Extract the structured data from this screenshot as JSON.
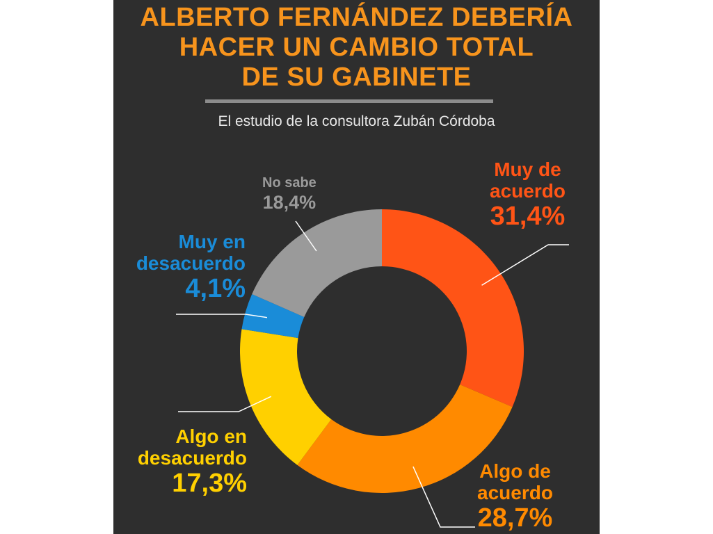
{
  "header": {
    "title_lines": [
      "ALBERTO FERNÁNDEZ DEBERÍA",
      "HACER UN CAMBIO TOTAL",
      "DE SU GABINETE"
    ],
    "subtitle": "El estudio de la consultora Zubán Córdoba"
  },
  "chart_data": {
    "type": "pie",
    "donut": true,
    "title": "ALBERTO FERNÁNDEZ DEBERÍA HACER UN CAMBIO TOTAL DE SU GABINETE",
    "subtitle": "El estudio de la consultora Zubán Córdoba",
    "slices": [
      {
        "name_lines": [
          "Muy de",
          "acuerdo"
        ],
        "label": "31,4%",
        "value": 31.4,
        "color": "#ff5416"
      },
      {
        "name_lines": [
          "Algo de",
          "acuerdo"
        ],
        "label": "28,7%",
        "value": 28.7,
        "color": "#ff8a00"
      },
      {
        "name_lines": [
          "Algo en",
          "desacuerdo"
        ],
        "label": "17,3%",
        "value": 17.3,
        "color": "#ffd000"
      },
      {
        "name_lines": [
          "Muy en",
          "desacuerdo"
        ],
        "label": "4,1%",
        "value": 4.1,
        "color": "#1a8cd8"
      },
      {
        "name_lines": [
          "No sabe"
        ],
        "label": "18,4%",
        "value": 18.4,
        "color": "#9a9a9a"
      }
    ]
  }
}
